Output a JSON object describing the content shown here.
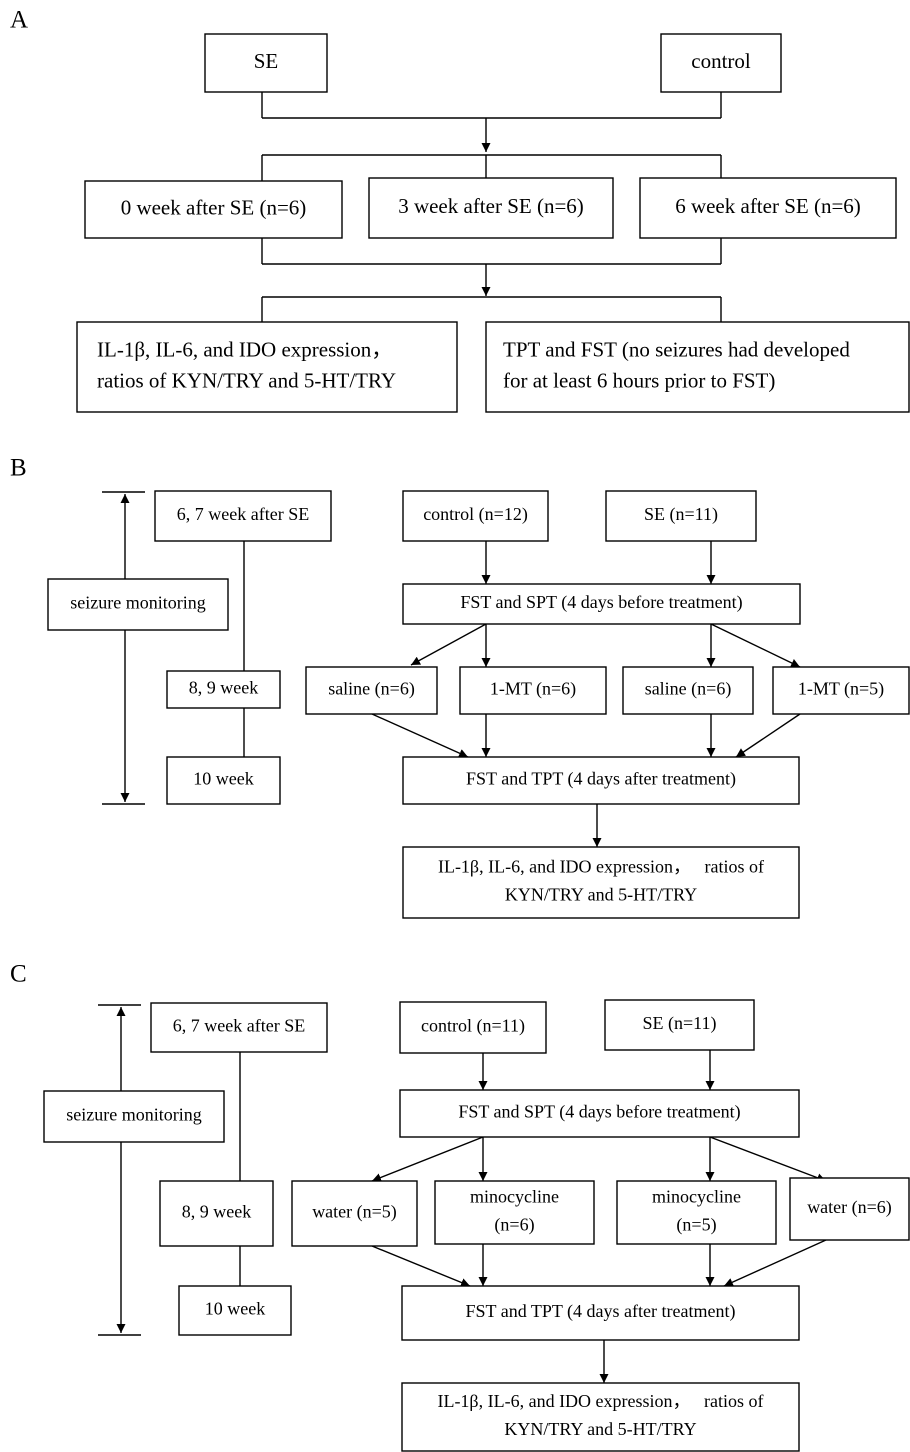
{
  "panels": [
    {
      "label": "A",
      "nodes": [
        {
          "lines": [
            "SE"
          ]
        },
        {
          "lines": [
            "control"
          ]
        },
        {
          "lines": [
            "0 week after SE (n=6)"
          ]
        },
        {
          "lines": [
            "3 week after SE (n=6)"
          ]
        },
        {
          "lines": [
            "6 week after SE (n=6)"
          ]
        },
        {
          "lines": [
            "IL-1β, IL-6, and IDO expression，",
            "ratios of KYN/TRY and 5-HT/TRY"
          ]
        },
        {
          "lines": [
            "TPT and FST (no seizures had developed",
            "for at least 6 hours prior to FST)"
          ]
        }
      ]
    },
    {
      "label": "B",
      "nodes": [
        {
          "lines": [
            "seizure monitoring"
          ]
        },
        {
          "lines": [
            "6, 7 week after SE"
          ]
        },
        {
          "lines": [
            "8, 9 week"
          ]
        },
        {
          "lines": [
            "10 week"
          ]
        },
        {
          "lines": [
            "control (n=12)"
          ]
        },
        {
          "lines": [
            "SE (n=11)"
          ]
        },
        {
          "lines": [
            "FST and SPT (4 days before treatment)"
          ]
        },
        {
          "lines": [
            "saline (n=6)"
          ]
        },
        {
          "lines": [
            "1-MT (n=6)"
          ]
        },
        {
          "lines": [
            "saline (n=6)"
          ]
        },
        {
          "lines": [
            "1-MT (n=5)"
          ]
        },
        {
          "lines": [
            "FST and TPT (4 days after treatment)"
          ]
        },
        {
          "lines": [
            "IL-1β, IL-6, and IDO expression，   ratios of",
            "KYN/TRY and 5-HT/TRY"
          ]
        }
      ]
    },
    {
      "label": "C",
      "nodes": [
        {
          "lines": [
            "seizure monitoring"
          ]
        },
        {
          "lines": [
            "6, 7 week after SE"
          ]
        },
        {
          "lines": [
            "8, 9 week"
          ]
        },
        {
          "lines": [
            "10 week"
          ]
        },
        {
          "lines": [
            "control (n=11)"
          ]
        },
        {
          "lines": [
            "SE (n=11)"
          ]
        },
        {
          "lines": [
            "FST and SPT (4 days before treatment)"
          ]
        },
        {
          "lines": [
            "water (n=5)"
          ]
        },
        {
          "lines": [
            "minocycline",
            "(n=6)"
          ]
        },
        {
          "lines": [
            "minocycline",
            "(n=5)"
          ]
        },
        {
          "lines": [
            "water (n=6)"
          ]
        },
        {
          "lines": [
            "FST and TPT (4 days after treatment)"
          ]
        },
        {
          "lines": [
            "IL-1β, IL-6, and IDO expression，   ratios of",
            "KYN/TRY and 5-HT/TRY"
          ]
        }
      ]
    }
  ]
}
